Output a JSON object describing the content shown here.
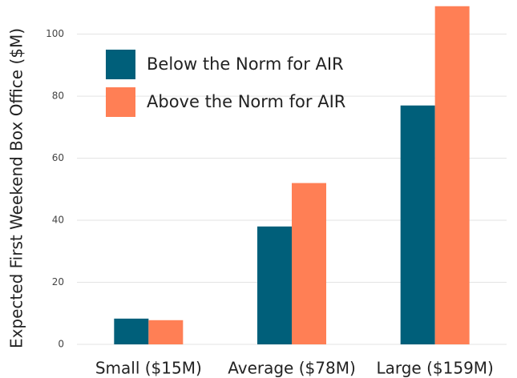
{
  "chart_data": {
    "type": "bar",
    "y_label": "Expected First Weekend Box Office ($M)",
    "categories": [
      "Small ($15M)",
      "Average ($78M)",
      "Large ($159M)"
    ],
    "series": [
      {
        "name": "Below the Norm for AIR",
        "color": "#005f7a",
        "values": [
          8.3,
          38,
          77
        ]
      },
      {
        "name": "Above the Norm for AIR",
        "color": "#ff7f55",
        "values": [
          7.8,
          52,
          109
        ]
      }
    ],
    "ylim": [
      0,
      111
    ],
    "yticks": [
      0,
      20,
      40,
      60,
      80,
      100
    ],
    "grid": true,
    "legend": "upper-left"
  }
}
